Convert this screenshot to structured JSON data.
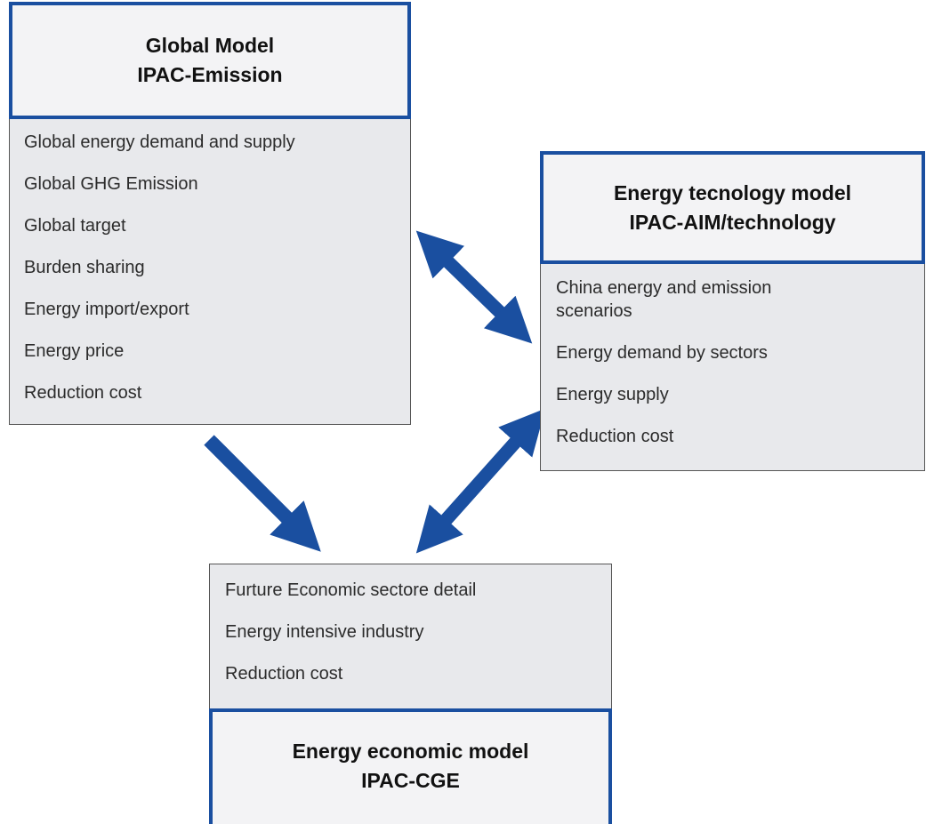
{
  "nodes": [
    {
      "title": "Global Model",
      "subtitle": "IPAC-Emission",
      "items": [
        "Global energy demand and supply",
        "Global GHG Emission",
        "Global target",
        "Burden sharing",
        "Energy import/export",
        "Energy price",
        "Reduction cost"
      ]
    },
    {
      "title": "Energy tecnology model",
      "subtitle": "IPAC-AIM/technology",
      "items": [
        "China energy and emission scenarios",
        "Energy demand by sectors",
        "Energy supply",
        "Reduction cost"
      ]
    },
    {
      "title": "Energy economic model",
      "subtitle": "IPAC-CGE",
      "items": [
        "Furture Economic sectore detail",
        "Energy intensive industry",
        "Reduction cost"
      ]
    }
  ]
}
